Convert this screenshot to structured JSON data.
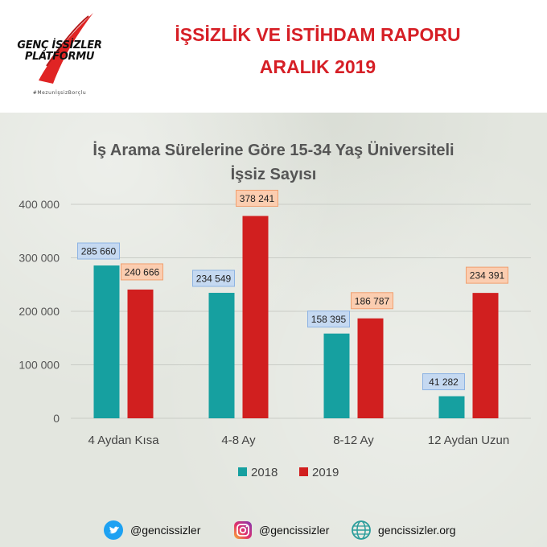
{
  "header": {
    "logo_name": "GENÇ İŞSİZLER\nPLATFORMU",
    "logo_tagline": "#MezunİşsizBorçlu",
    "title_line1": "İŞSİZLİK VE İSTİHDAM RAPORU",
    "title_line2": "ARALIK 2019"
  },
  "chart_data": {
    "type": "bar",
    "title": "İş Arama Sürelerine Göre 15-34 Yaş Üniversiteli\nİşsiz Sayısı",
    "categories": [
      "4 Aydan Kısa",
      "4-8 Ay",
      "8-12 Ay",
      "12 Aydan Uzun"
    ],
    "series": [
      {
        "name": "2018",
        "color": "#16a0a0",
        "label_bg": "#c5d9f1",
        "label_border": "#8eb4e3",
        "values": [
          285660,
          234549,
          158395,
          41282
        ],
        "labels": [
          "285 660",
          "234 549",
          "158 395",
          "41 282"
        ]
      },
      {
        "name": "2019",
        "color": "#d11f1f",
        "label_bg": "#fbcdb0",
        "label_border": "#f0a070",
        "values": [
          240666,
          378241,
          186787,
          234391
        ],
        "labels": [
          "240 666",
          "378 241",
          "186 787",
          "234 391"
        ]
      }
    ],
    "ylim": [
      0,
      400000
    ],
    "yticks": [
      0,
      100000,
      200000,
      300000,
      400000
    ],
    "ytick_labels": [
      "0",
      "100 000",
      "200 000",
      "300 000",
      "400 000"
    ],
    "grid": true,
    "legend": "bottom"
  },
  "footer": {
    "twitter_handle": "@gencissizler",
    "instagram_handle": "@gencissizler",
    "website": "gencissizler.org"
  }
}
